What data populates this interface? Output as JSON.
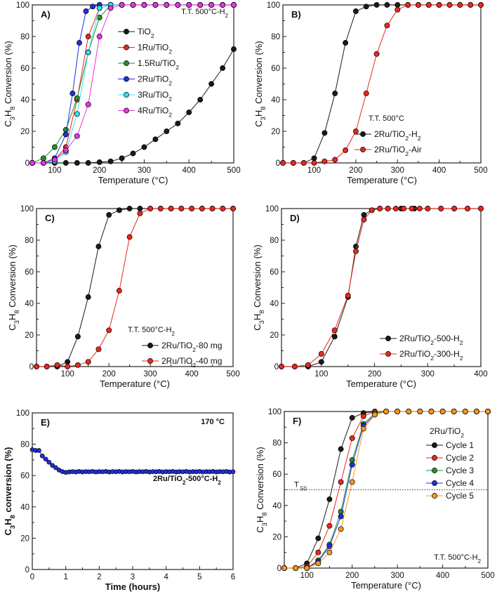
{
  "figure": "C3H8 conversion versus temperature for Ru/TiO2 catalysts",
  "colors": {
    "black": "#1a1a1a",
    "red": "#e8281c",
    "green": "#239323",
    "blue": "#2030dd",
    "cyan": "#2de3ef",
    "magenta": "#e535e5",
    "orange": "#f7951f"
  },
  "chart_data": [
    {
      "id": "A",
      "type": "scatter",
      "panel_label": "A)",
      "annotation": "T.T. 500°C-H",
      "annotation_sub": "2",
      "xlabel": "Temperature (°C)",
      "ylabel_parts": [
        "C",
        "3",
        "H",
        "8",
        " Conversion   (%)"
      ],
      "xlim": [
        50,
        500
      ],
      "ylim": [
        0,
        100
      ],
      "xticks": [
        100,
        200,
        300,
        400,
        500
      ],
      "yticks": [
        0,
        20,
        40,
        60,
        80,
        100
      ],
      "legend_position": "upper-left",
      "series": [
        {
          "name": "TiO",
          "name_sub": "2",
          "color": "black",
          "x": [
            50,
            75,
            100,
            125,
            150,
            175,
            200,
            225,
            250,
            275,
            300,
            325,
            350,
            375,
            400,
            425,
            450,
            475,
            500
          ],
          "y": [
            0,
            0,
            0,
            0,
            0,
            0,
            0.5,
            1,
            3,
            6,
            10,
            15,
            20,
            25,
            32,
            40,
            50,
            60,
            72
          ]
        },
        {
          "name": "1Ru/TiO",
          "name_sub": "2",
          "color": "red",
          "x": [
            50,
            75,
            100,
            125,
            150,
            175,
            200,
            225,
            250,
            275,
            300,
            325,
            350,
            375,
            400,
            425,
            450,
            475,
            500
          ],
          "y": [
            0,
            0,
            2,
            10,
            40,
            80,
            98,
            100,
            100,
            100,
            100,
            100,
            100,
            100,
            100,
            100,
            100,
            100,
            100
          ]
        },
        {
          "name": "1.5Ru/TiO",
          "name_sub": "2",
          "color": "green",
          "x": [
            50,
            75,
            100,
            125,
            150,
            175,
            200,
            225,
            250,
            275,
            300,
            325,
            350,
            375,
            400,
            425,
            450,
            475,
            500
          ],
          "y": [
            0,
            3,
            10,
            21,
            41,
            70,
            92,
            100,
            100,
            100,
            100,
            100,
            100,
            100,
            100,
            100,
            100,
            100,
            100
          ]
        },
        {
          "name": "2Ru/TiO",
          "name_sub": "2",
          "color": "blue",
          "x": [
            50,
            75,
            100,
            125,
            140,
            155,
            170,
            185,
            200,
            225,
            250,
            275,
            300,
            325,
            350,
            375,
            400,
            425,
            450,
            475,
            500
          ],
          "y": [
            0,
            0,
            3,
            18,
            44,
            76,
            96,
            99,
            100,
            100,
            100,
            100,
            100,
            100,
            100,
            100,
            100,
            100,
            100,
            100,
            100
          ]
        },
        {
          "name": "3Ru/TiO",
          "name_sub": "2",
          "color": "cyan",
          "x": [
            50,
            75,
            100,
            125,
            150,
            175,
            200,
            225,
            250,
            275,
            300,
            325,
            350,
            375,
            400,
            425,
            450,
            475,
            500
          ],
          "y": [
            0,
            0,
            1,
            7,
            31,
            70,
            98,
            100,
            100,
            100,
            100,
            100,
            100,
            100,
            100,
            100,
            100,
            100,
            100
          ]
        },
        {
          "name": "4Ru/TiO",
          "name_sub": "2",
          "color": "magenta",
          "x": [
            50,
            75,
            100,
            125,
            150,
            175,
            200,
            225,
            250,
            275,
            300,
            325,
            350,
            375,
            400,
            425,
            450,
            475,
            500
          ],
          "y": [
            0,
            0,
            2,
            8,
            17,
            37,
            80,
            98,
            100,
            100,
            100,
            100,
            100,
            100,
            100,
            100,
            100,
            100,
            100
          ]
        }
      ]
    },
    {
      "id": "B",
      "type": "scatter",
      "panel_label": "B)",
      "annotation": "T.T. 500°C",
      "annotation_sub": "",
      "xlabel": "Temperature (°C)",
      "ylabel_parts": [
        "C",
        "3",
        "H",
        "8",
        "  Conversion   (%)"
      ],
      "xlim": [
        25,
        500
      ],
      "ylim": [
        0,
        100
      ],
      "xticks": [
        100,
        200,
        300,
        400,
        500
      ],
      "yticks": [
        0,
        20,
        40,
        60,
        80,
        100
      ],
      "legend_position": "lower-right",
      "series": [
        {
          "name": "2Ru/TiO",
          "name_sub": "2",
          "name_tail": "-H",
          "tail_sub": "2",
          "color": "black",
          "x": [
            25,
            50,
            75,
            100,
            125,
            150,
            175,
            200,
            225,
            250,
            275,
            300,
            325,
            350,
            375,
            400,
            425,
            450,
            475,
            500
          ],
          "y": [
            0,
            0,
            0,
            3,
            19,
            44,
            76,
            96,
            99,
            100,
            100,
            100,
            100,
            100,
            100,
            100,
            100,
            100,
            100,
            100
          ]
        },
        {
          "name": "2Ru/TiO",
          "name_sub": "2",
          "name_tail": "-Air",
          "tail_sub": "",
          "color": "red",
          "x": [
            25,
            50,
            75,
            100,
            125,
            150,
            175,
            200,
            225,
            250,
            275,
            300,
            325,
            350,
            375,
            400,
            425,
            450,
            475,
            500
          ],
          "y": [
            0,
            0,
            0,
            0,
            1,
            2,
            8,
            20,
            44,
            69,
            87,
            97,
            100,
            100,
            100,
            100,
            100,
            100,
            100,
            100
          ]
        }
      ]
    },
    {
      "id": "C",
      "type": "scatter",
      "panel_label": "C)",
      "annotation": "T.T. 500°C-H",
      "annotation_sub": "2",
      "xlabel": "Temperature (°C)",
      "ylabel_parts": [
        "C",
        "3",
        "H",
        "8",
        "  Conversion   (%)"
      ],
      "xlim": [
        25,
        500
      ],
      "ylim": [
        0,
        100
      ],
      "xticks": [
        100,
        200,
        300,
        400,
        500
      ],
      "yticks": [
        0,
        20,
        40,
        60,
        80,
        100
      ],
      "legend_position": "lower-right",
      "series": [
        {
          "name": "2Ru/TiO",
          "name_sub": "2",
          "name_tail": "-80 mg",
          "tail_sub": "",
          "color": "black",
          "x": [
            25,
            50,
            75,
            100,
            125,
            150,
            175,
            200,
            225,
            250,
            275,
            300,
            325,
            350,
            375,
            400,
            425,
            450,
            475,
            500
          ],
          "y": [
            0,
            0,
            0,
            3,
            19,
            44,
            76,
            96,
            99,
            100,
            100,
            100,
            100,
            100,
            100,
            100,
            100,
            100,
            100,
            100
          ]
        },
        {
          "name": "2Ru/TiO",
          "name_sub": "2",
          "name_tail": "-40 mg",
          "tail_sub": "",
          "color": "red",
          "x": [
            25,
            50,
            75,
            100,
            125,
            150,
            175,
            200,
            225,
            250,
            275,
            300,
            325,
            350,
            375,
            400,
            425,
            450,
            475,
            500
          ],
          "y": [
            0,
            0,
            1,
            0,
            1,
            3,
            11,
            23,
            48,
            82,
            97,
            100,
            100,
            100,
            100,
            100,
            100,
            100,
            100,
            100
          ]
        }
      ]
    },
    {
      "id": "D",
      "type": "scatter",
      "panel_label": "D)",
      "annotation": "",
      "annotation_sub": "",
      "xlabel": "Temperature (°C)",
      "ylabel_parts": [
        "C",
        "3",
        "H",
        "8",
        "  Conversion   (%)"
      ],
      "xlim": [
        25,
        400
      ],
      "ylim": [
        0,
        100
      ],
      "xticks": [
        100,
        200,
        300,
        400
      ],
      "yticks": [
        0,
        20,
        40,
        60,
        80,
        100
      ],
      "legend_position": "lower-right",
      "series": [
        {
          "name": "2Ru/TiO",
          "name_sub": "2",
          "name_tail": "-500-H",
          "tail_sub": "2",
          "color": "black",
          "x": [
            25,
            50,
            75,
            100,
            125,
            150,
            165,
            180,
            195,
            210,
            225,
            250,
            275,
            300,
            325,
            350,
            375,
            400
          ],
          "y": [
            0,
            0,
            0,
            3,
            19,
            44,
            76,
            96,
            99,
            100,
            100,
            100,
            100,
            100,
            100,
            100,
            100,
            100
          ]
        },
        {
          "name": "2Ru/TiO",
          "name_sub": "2",
          "name_tail": "-300-H",
          "tail_sub": "2",
          "color": "red",
          "x": [
            25,
            50,
            75,
            100,
            125,
            150,
            165,
            180,
            195,
            210,
            225,
            240,
            255,
            270,
            285,
            300,
            325,
            350,
            375,
            400
          ],
          "y": [
            0,
            0,
            1,
            8,
            23,
            45,
            73,
            93,
            99,
            100,
            100,
            100,
            100,
            100,
            100,
            100,
            100,
            100,
            100,
            100
          ]
        }
      ]
    },
    {
      "id": "E",
      "type": "scatter",
      "panel_label": "E)",
      "annotation": "170 °C",
      "annotation_sub": "",
      "series_label": "2Ru/TiO",
      "series_label_sub": "2",
      "series_label_tail": "-500°C-H",
      "series_label_tail_sub": "2",
      "xlabel": "Time (hours)",
      "ylabel_parts": [
        "C",
        "3",
        "H",
        "8",
        "  conversion (%)"
      ],
      "xlim": [
        0,
        6
      ],
      "ylim": [
        0,
        100
      ],
      "xticks": [
        0,
        1,
        2,
        3,
        4,
        5,
        6
      ],
      "yticks": [
        0,
        20,
        40,
        60,
        80,
        100
      ],
      "series": [
        {
          "name": "2Ru/TiO2-500°C-H2",
          "color": "blue",
          "x_start": 0,
          "x_step": 0.1,
          "y": [
            76.5,
            76,
            76,
            72.5,
            70.5,
            68.5,
            66.5,
            65,
            63.5,
            62.5,
            62,
            62.3,
            62.5,
            62.3,
            62.6,
            62.3,
            62.5,
            62.4,
            62.6,
            62.3,
            62.5,
            62.4,
            62.6,
            62.3,
            62.5,
            62.4,
            62.6,
            62.3,
            62.5,
            62.4,
            62.6,
            62.3,
            62.5,
            62.4,
            62.6,
            62.3,
            62.5,
            62.4,
            62.6,
            62.3,
            62.5,
            62.4,
            62.6,
            62.3,
            62.5,
            62.4,
            62.6,
            62.3,
            62.5,
            62.4,
            62.6,
            62.3,
            62.5,
            62.4,
            62.6,
            62.3,
            62.5,
            62.4,
            62.6,
            62.3,
            62.4
          ]
        }
      ]
    },
    {
      "id": "F",
      "type": "scatter",
      "panel_label": "F)",
      "annotation": "T.T. 500°C-H",
      "annotation_sub": "2",
      "title_text": "2Ru/TiO",
      "title_sub": "2",
      "t50_label": "T",
      "t50_sub": "50",
      "t50_value": 50,
      "xlabel": "Temperature (°C)",
      "ylabel_parts": [
        "C",
        "3",
        "H",
        "8",
        " Conversion   (%)"
      ],
      "xlim": [
        50,
        500
      ],
      "ylim": [
        0,
        100
      ],
      "xticks": [
        100,
        200,
        300,
        400,
        500
      ],
      "yticks": [
        0,
        20,
        40,
        60,
        80,
        100
      ],
      "legend_position": "upper-right",
      "series": [
        {
          "name": "Cycle 1",
          "color": "black",
          "x": [
            50,
            75,
            100,
            125,
            150,
            175,
            200,
            225,
            250,
            275,
            300,
            325,
            350,
            375,
            400,
            425,
            450,
            475,
            500
          ],
          "y": [
            0,
            0,
            3,
            19,
            44,
            76,
            96,
            99,
            100,
            100,
            100,
            100,
            100,
            100,
            100,
            100,
            100,
            100,
            100
          ]
        },
        {
          "name": "Cycle 2",
          "color": "red",
          "x": [
            50,
            75,
            100,
            125,
            150,
            175,
            200,
            225,
            250,
            275,
            300,
            325,
            350,
            375,
            400,
            425,
            450,
            475,
            500
          ],
          "y": [
            0,
            0,
            1,
            10,
            27,
            55,
            83,
            97,
            100,
            100,
            100,
            100,
            100,
            100,
            100,
            100,
            100,
            100,
            100
          ]
        },
        {
          "name": "Cycle 3",
          "color": "green",
          "x": [
            50,
            75,
            100,
            125,
            150,
            175,
            200,
            225,
            250,
            275,
            300,
            325,
            350,
            375,
            400,
            425,
            450,
            475,
            500
          ],
          "y": [
            0,
            0,
            0,
            5,
            15,
            36,
            69,
            92,
            99,
            100,
            100,
            100,
            100,
            100,
            100,
            100,
            100,
            100,
            100
          ]
        },
        {
          "name": "Cycle 4",
          "color": "blue",
          "x": [
            50,
            75,
            100,
            125,
            150,
            175,
            200,
            225,
            250,
            275,
            300,
            325,
            350,
            375,
            400,
            425,
            450,
            475,
            500
          ],
          "y": [
            0,
            0,
            0,
            4,
            14,
            33,
            66,
            91,
            98,
            100,
            100,
            100,
            100,
            100,
            100,
            100,
            100,
            100,
            100
          ]
        },
        {
          "name": "Cycle 5",
          "color": "orange",
          "x": [
            50,
            75,
            100,
            125,
            150,
            175,
            200,
            225,
            250,
            275,
            300,
            325,
            350,
            375,
            400,
            425,
            450,
            475,
            500
          ],
          "y": [
            0,
            0,
            0,
            3,
            10,
            25,
            55,
            89,
            98,
            100,
            100,
            100,
            100,
            100,
            100,
            100,
            100,
            100,
            100
          ]
        }
      ]
    }
  ]
}
